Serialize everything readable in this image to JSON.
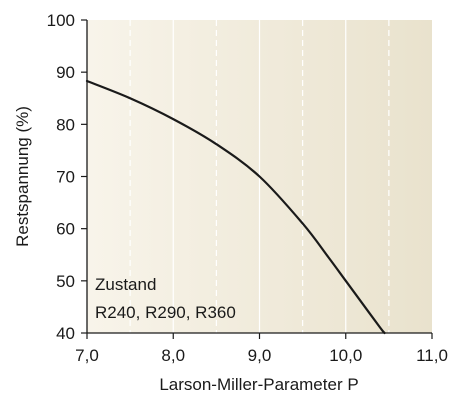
{
  "chart_data": {
    "type": "line",
    "xlabel": "Larson-Miller-Parameter P",
    "ylabel": "Restspannung (%)",
    "xlim": [
      7.0,
      11.0
    ],
    "ylim": [
      40,
      100
    ],
    "x_ticks": [
      "7,0",
      "8,0",
      "9,0",
      "10,0",
      "11,0"
    ],
    "y_ticks": [
      "40",
      "50",
      "60",
      "70",
      "80",
      "90",
      "100"
    ],
    "grid": "vertical dashed at 0.5 steps",
    "series": [
      {
        "x": [
          7.0,
          7.5,
          8.0,
          8.5,
          9.0,
          9.5,
          9.8,
          10.0,
          10.2,
          10.4,
          10.45
        ],
        "y": [
          88.3,
          85.0,
          81.0,
          76.2,
          70.0,
          61.0,
          54.5,
          50.0,
          45.5,
          41.0,
          40.0
        ]
      }
    ],
    "annotation": [
      "Zustand",
      "R240, R290, R360"
    ],
    "colors": {
      "line": "#1a1a1a",
      "bg_left": "#f8f4ea",
      "bg_right": "#e9e2cd",
      "grid": "#ffffff"
    }
  }
}
